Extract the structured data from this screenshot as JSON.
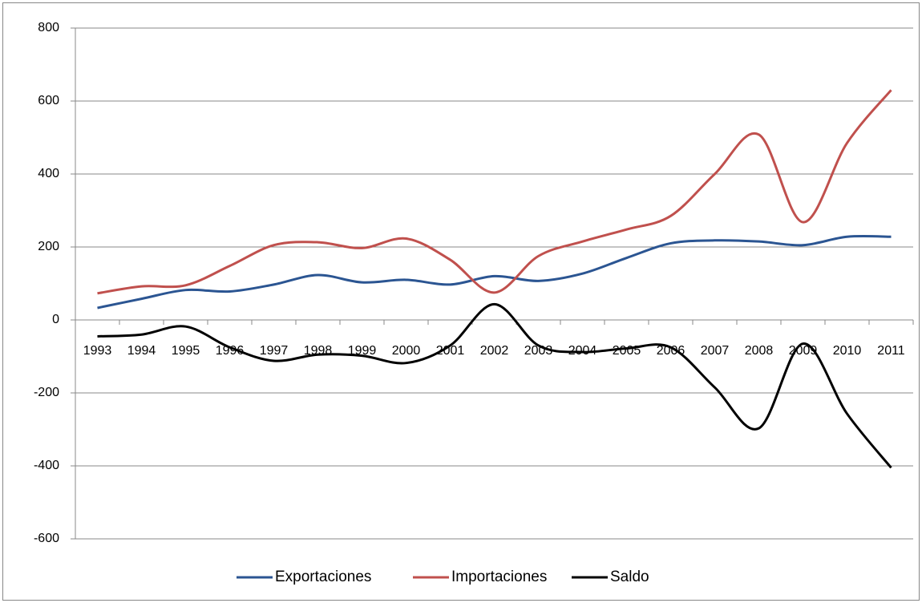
{
  "chart_data": {
    "type": "line",
    "categories": [
      "1993",
      "1994",
      "1995",
      "1996",
      "1997",
      "1998",
      "1999",
      "2000",
      "2001",
      "2002",
      "2003",
      "2004",
      "2005",
      "2006",
      "2007",
      "2008",
      "2009",
      "2010",
      "2011"
    ],
    "series": [
      {
        "name": "Exportaciones",
        "color": "#2b5592",
        "values": [
          33,
          58,
          82,
          78,
          97,
          123,
          103,
          110,
          97,
          120,
          107,
          127,
          170,
          210,
          218,
          215,
          205,
          228,
          228
        ]
      },
      {
        "name": "Importaciones",
        "color": "#c0504d",
        "values": [
          73,
          92,
          95,
          148,
          205,
          213,
          197,
          223,
          165,
          75,
          175,
          215,
          248,
          285,
          400,
          508,
          268,
          485,
          630
        ]
      },
      {
        "name": "Saldo",
        "color": "#000000",
        "values": [
          -45,
          -40,
          -18,
          -75,
          -112,
          -95,
          -98,
          -118,
          -70,
          43,
          -70,
          -88,
          -78,
          -75,
          -185,
          -297,
          -65,
          -257,
          -405
        ]
      }
    ],
    "ylim": [
      -600,
      800
    ],
    "yticks": [
      -600,
      -400,
      -200,
      0,
      200,
      400,
      600,
      800
    ],
    "grid": true,
    "legend": "bottom"
  }
}
